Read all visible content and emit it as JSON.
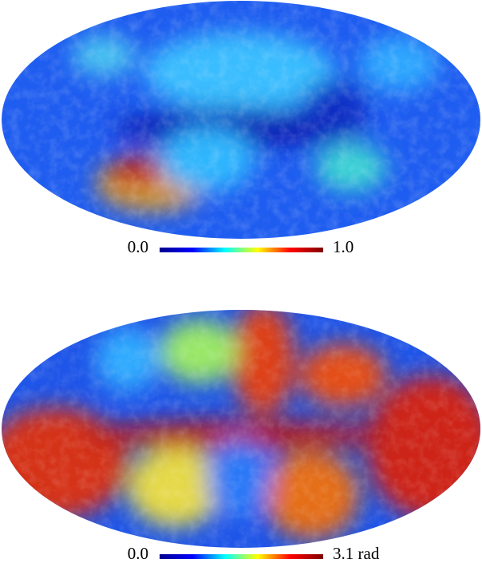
{
  "chart_data": [
    {
      "type": "map",
      "projection": "mollweide",
      "colormap": "jet",
      "colorbar": {
        "lim": [
          0,
          1
        ],
        "ticks": [
          {
            "value": 0,
            "label": "0.0"
          },
          {
            "value": 1,
            "label": "1.0"
          }
        ]
      }
    },
    {
      "type": "map",
      "projection": "mollweide",
      "colormap": "jet",
      "colorbar": {
        "lim": [
          0,
          3.1
        ],
        "ticks": [
          {
            "value": 0,
            "label": "0.0"
          },
          {
            "value": 3.1,
            "label": "3.1 rad"
          }
        ]
      }
    }
  ]
}
